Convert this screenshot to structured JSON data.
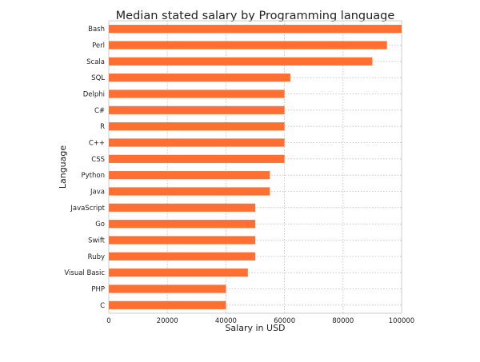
{
  "chart_data": {
    "type": "bar",
    "orientation": "horizontal",
    "title": "Median stated salary by Programming language",
    "xlabel": "Salary in USD",
    "ylabel": "Language",
    "categories": [
      "Bash",
      "Perl",
      "Scala",
      "SQL",
      "Delphi",
      "C#",
      "R",
      "C++",
      "CSS",
      "Python",
      "Java",
      "JavaScript",
      "Go",
      "Swift",
      "Ruby",
      "Visual Basic",
      "PHP",
      "C"
    ],
    "values": [
      100000,
      95000,
      90000,
      62000,
      60000,
      60000,
      60000,
      60000,
      60000,
      55000,
      55000,
      50000,
      50000,
      50000,
      50000,
      47500,
      40000,
      40000
    ],
    "xlim": [
      0,
      100000
    ],
    "xticks": [
      0,
      20000,
      40000,
      60000,
      80000,
      100000
    ],
    "grid": true,
    "bar_color": "#ff6f31"
  }
}
